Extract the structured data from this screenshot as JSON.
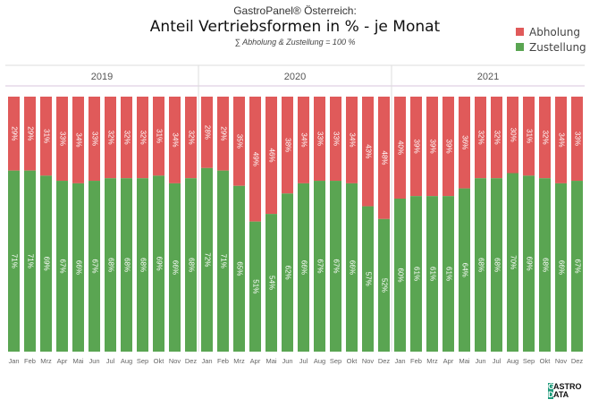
{
  "header": {
    "supertitle": "GastroPanel® Österreich:",
    "title": "Anteil Vertriebsformen in % - je Monat",
    "subtitle": "∑ Abholung & Zustellung = 100 %"
  },
  "logo": {
    "text": "GASTRO DATA"
  },
  "chart_data": {
    "type": "bar",
    "stacked": true,
    "ylim": [
      0,
      100
    ],
    "legend": "top-right",
    "months": [
      "Jan",
      "Feb",
      "Mrz",
      "Apr",
      "Mai",
      "Jun",
      "Jul",
      "Aug",
      "Sep",
      "Okt",
      "Nov",
      "Dez"
    ],
    "series": [
      {
        "name": "Abholung",
        "color": "#e05a5a"
      },
      {
        "name": "Zustellung",
        "color": "#5aa552"
      }
    ],
    "panels": [
      {
        "year": "2019",
        "Zustellung": [
          71,
          71,
          69,
          67,
          66,
          67,
          68,
          68,
          68,
          69,
          66,
          68
        ],
        "Abholung": [
          29,
          29,
          31,
          33,
          34,
          33,
          32,
          32,
          32,
          31,
          34,
          32
        ]
      },
      {
        "year": "2020",
        "Zustellung": [
          72,
          71,
          65,
          51,
          54,
          62,
          66,
          67,
          67,
          66,
          57,
          52
        ],
        "Abholung": [
          28,
          29,
          35,
          49,
          46,
          38,
          34,
          33,
          33,
          34,
          43,
          48
        ]
      },
      {
        "year": "2021",
        "Zustellung": [
          60,
          61,
          61,
          61,
          64,
          68,
          68,
          70,
          69,
          68,
          66,
          67
        ],
        "Abholung": [
          40,
          39,
          39,
          39,
          36,
          32,
          32,
          30,
          31,
          32,
          34,
          33
        ]
      }
    ]
  }
}
